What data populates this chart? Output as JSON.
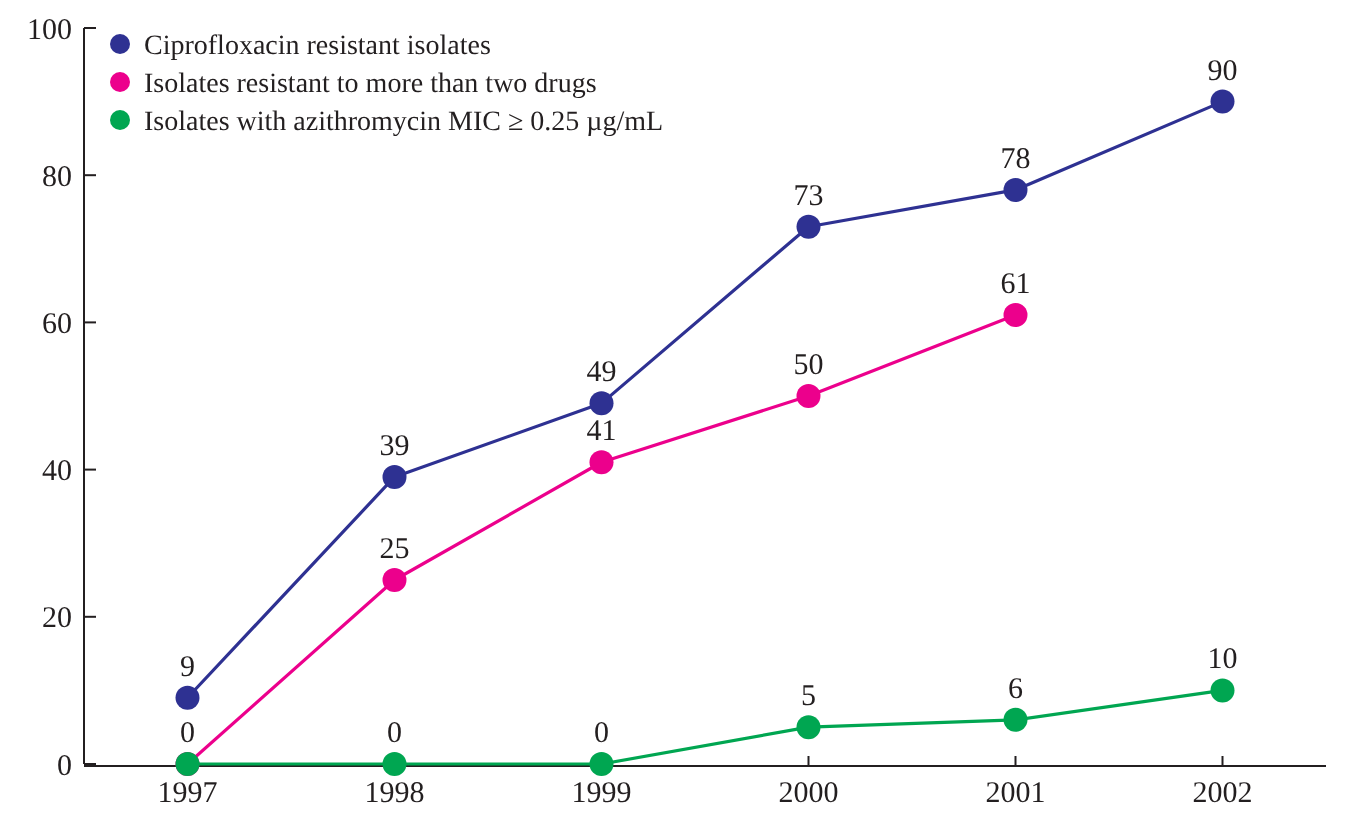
{
  "chart_data": {
    "type": "line",
    "categories": [
      "1997",
      "1998",
      "1999",
      "2000",
      "2001",
      "2002"
    ],
    "ylim": [
      0,
      100
    ],
    "yticks": [
      0,
      20,
      40,
      60,
      80,
      100
    ],
    "grid": false,
    "legend": "top left",
    "marker": "circle",
    "line_style": "solid",
    "series": [
      {
        "name": "Ciprofloxacin resistant isolates",
        "color": "#2e3192",
        "values": [
          9,
          39,
          49,
          73,
          78,
          90
        ],
        "value_labels": [
          "9",
          "39",
          "49",
          "73",
          "78",
          "90"
        ]
      },
      {
        "name": "Isolates resistant to more than two drugs",
        "color": "#ec008c",
        "values": [
          0,
          25,
          41,
          50,
          61,
          null
        ],
        "value_labels": [
          null,
          "25",
          "41",
          "50",
          "61",
          null
        ]
      },
      {
        "name": "Isolates with azithromycin MIC ≥  0.25 µg/mL",
        "color": "#00a651",
        "values": [
          0,
          0,
          0,
          5,
          6,
          10
        ],
        "value_labels": [
          "0",
          "0",
          "0",
          "5",
          "6",
          "10"
        ]
      }
    ]
  }
}
